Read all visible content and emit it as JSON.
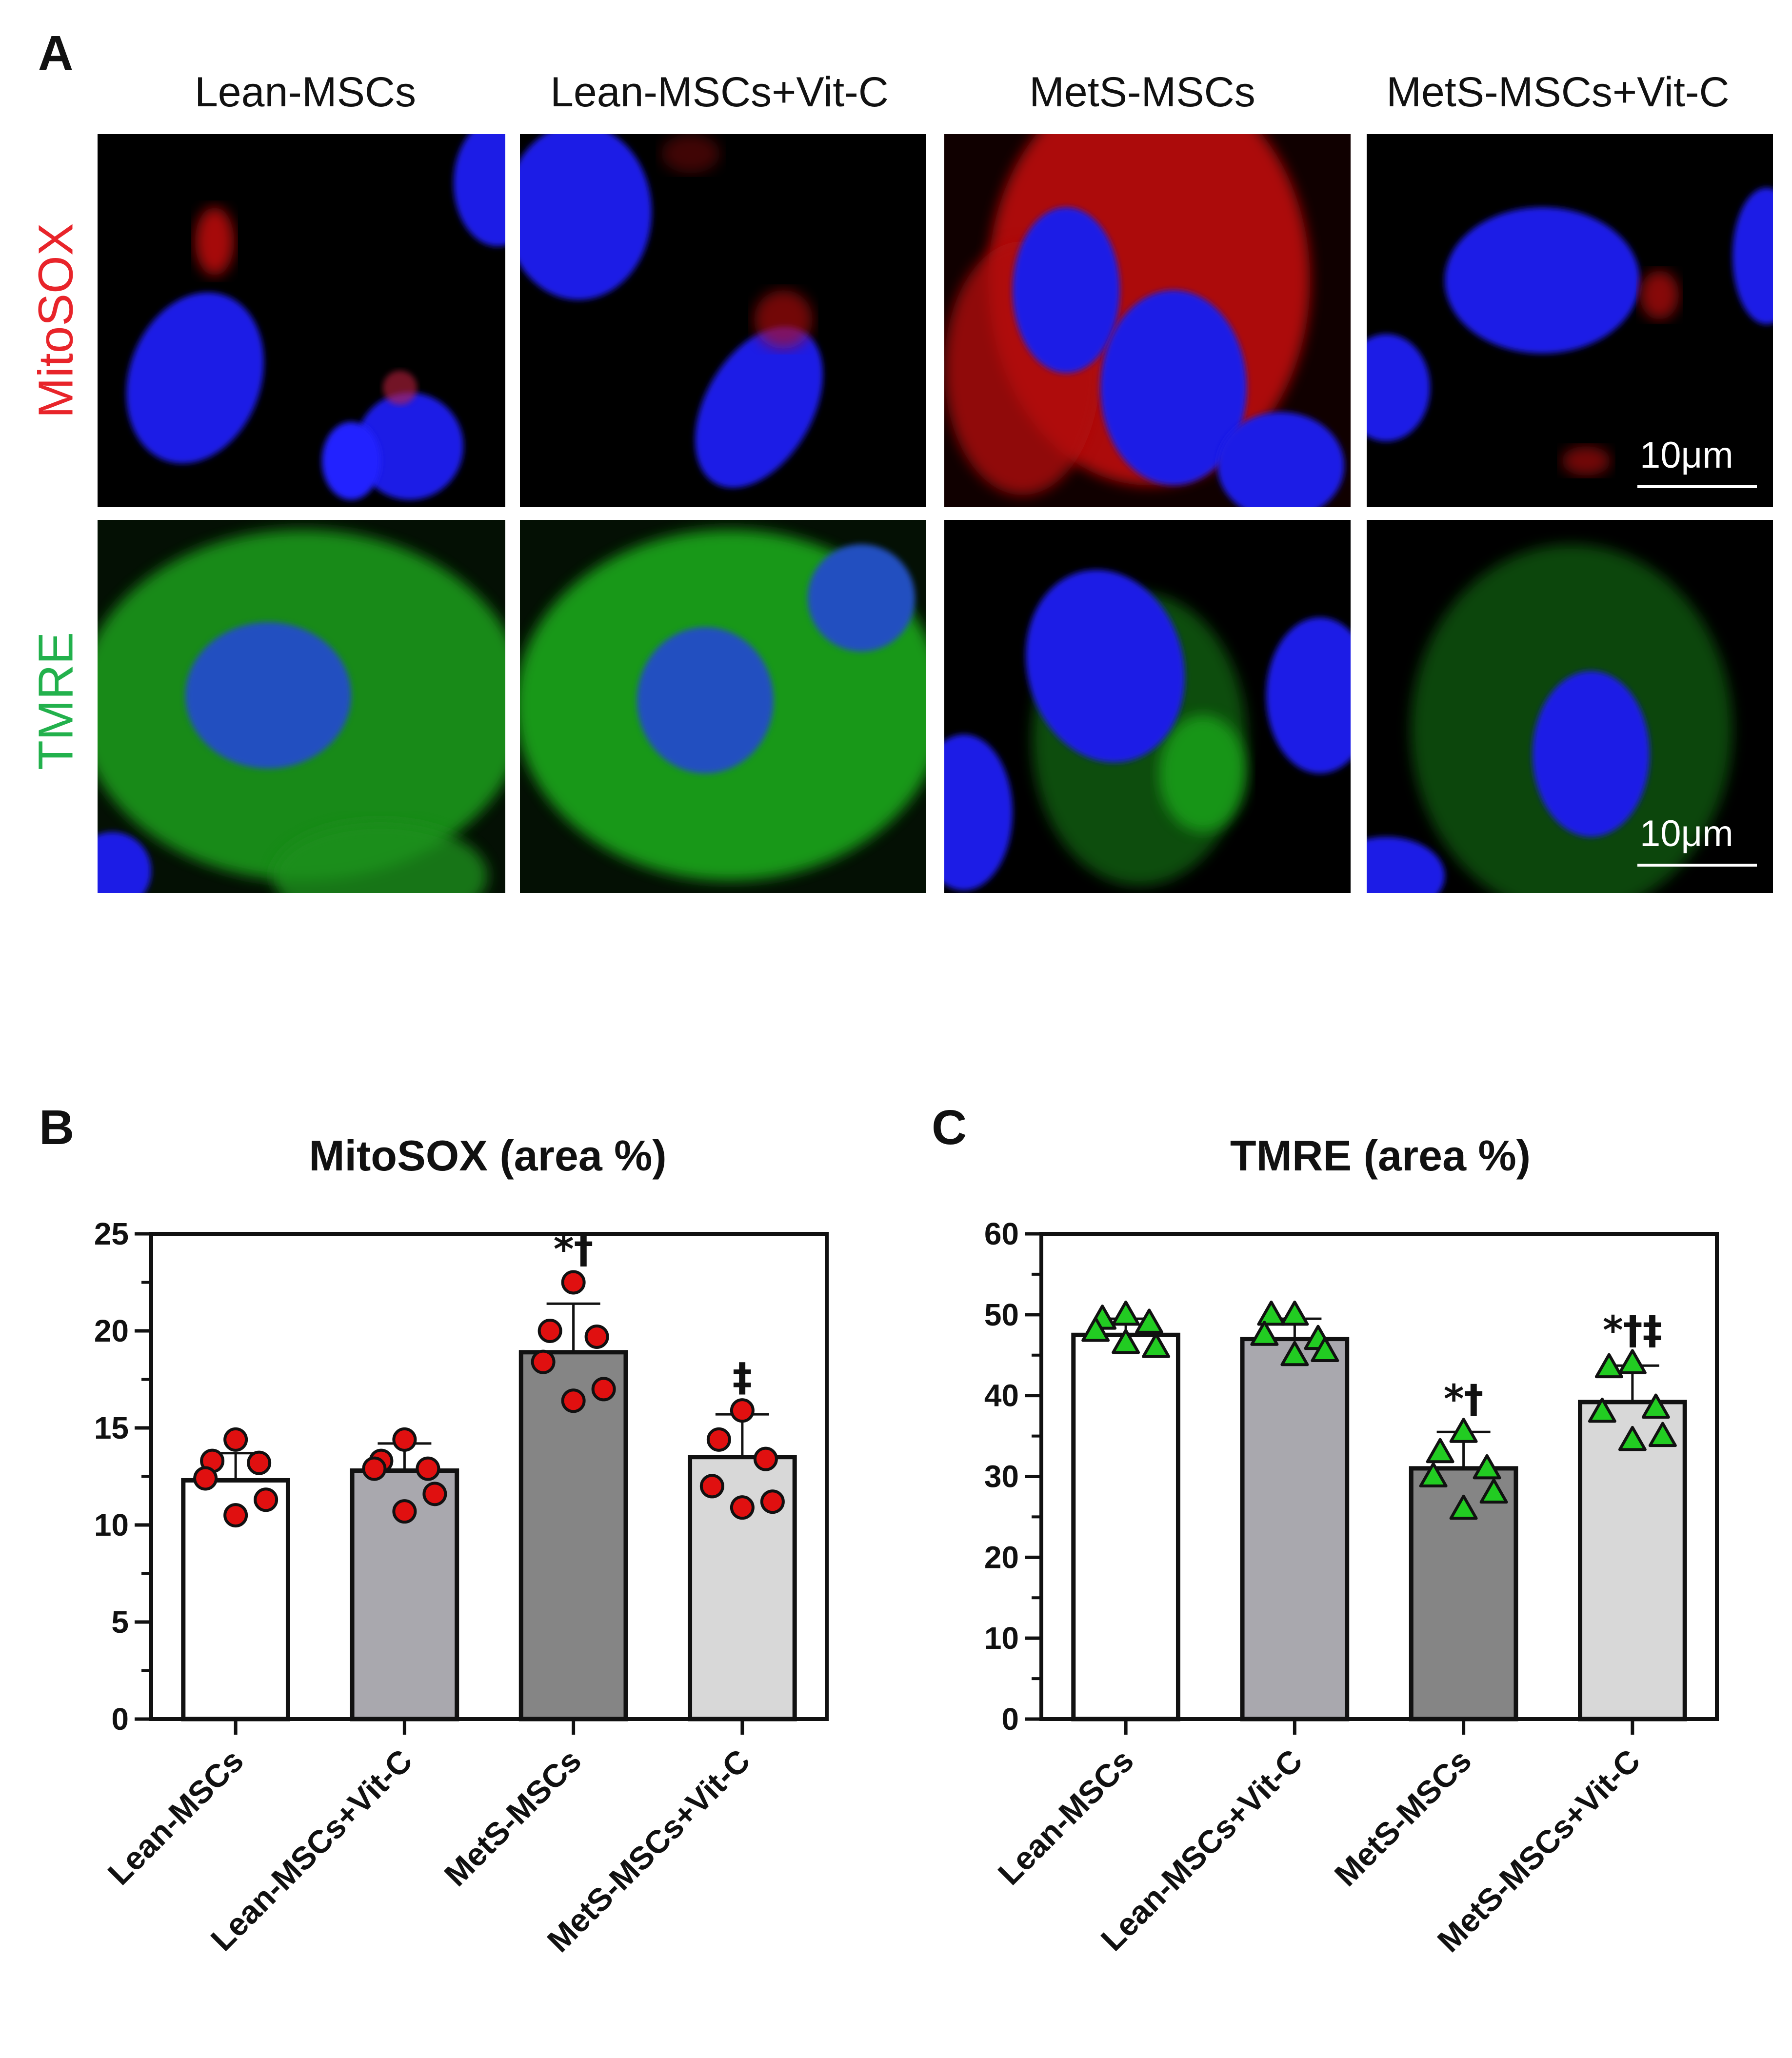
{
  "panels": {
    "a": "A",
    "b": "B",
    "c": "C"
  },
  "columns": [
    "Lean-MSCs",
    "Lean-MSCs+Vit-C",
    "MetS-MSCs",
    "MetS-MSCs+Vit-C"
  ],
  "rows": [
    {
      "label": "MitoSOX",
      "color": "#e8242a"
    },
    {
      "label": "TMRE",
      "color": "#22b14c"
    }
  ],
  "scale_bar": "10μm",
  "colors": {
    "nucleus": "#1a1ae6",
    "mitosox": "#e01818",
    "tmre": "#1fb41f"
  },
  "chart_data": [
    {
      "type": "bar",
      "title": "MitoSOX (area %)",
      "categories": [
        "Lean-MSCs",
        "Lean-MSCs+Vit-C",
        "MetS-MSCs",
        "MetS-MSCs+Vit-C"
      ],
      "values": [
        12.3,
        12.8,
        18.9,
        13.5
      ],
      "errors": [
        1.4,
        1.4,
        2.5,
        2.2
      ],
      "points": [
        [
          14.4,
          13.3,
          13.2,
          12.4,
          11.3,
          10.5
        ],
        [
          14.4,
          13.3,
          12.9,
          12.9,
          11.6,
          10.7
        ],
        [
          22.5,
          20.0,
          19.7,
          18.4,
          17.0,
          16.4
        ],
        [
          15.9,
          14.4,
          13.4,
          12.0,
          11.2,
          10.9
        ]
      ],
      "point_color": "#e01010",
      "point_marker": "circle",
      "bar_colors": [
        "#ffffff",
        "#a9a8ae",
        "#858585",
        "#d8d8d8"
      ],
      "significance": [
        "",
        "",
        "*†",
        "‡"
      ],
      "ylim": [
        0,
        25
      ],
      "yticks": [
        0,
        5,
        10,
        15,
        20,
        25
      ],
      "xlabel": "",
      "ylabel": ""
    },
    {
      "type": "bar",
      "title": "TMRE (area %)",
      "categories": [
        "Lean-MSCs",
        "Lean-MSCs+Vit-C",
        "MetS-MSCs",
        "MetS-MSCs+Vit-C"
      ],
      "values": [
        47.5,
        47.0,
        31.0,
        39.2
      ],
      "errors": [
        2.0,
        2.5,
        4.5,
        4.5
      ],
      "points": [
        [
          50.0,
          49.5,
          49.0,
          48.0,
          46.0,
          46.5
        ],
        [
          50.0,
          50.0,
          47.0,
          47.5,
          45.5,
          45.0
        ],
        [
          35.5,
          33.0,
          31.0,
          30.0,
          28.0,
          26.0
        ],
        [
          44.0,
          43.5,
          38.5,
          38.0,
          35.0,
          34.5
        ]
      ],
      "point_color": "#22cc22",
      "point_marker": "triangle",
      "bar_colors": [
        "#ffffff",
        "#a9a8ae",
        "#858585",
        "#d8d8d8"
      ],
      "significance": [
        "",
        "",
        "*†",
        "*†‡"
      ],
      "ylim": [
        0,
        60
      ],
      "yticks": [
        0,
        10,
        20,
        30,
        40,
        50,
        60
      ],
      "xlabel": "",
      "ylabel": ""
    }
  ]
}
